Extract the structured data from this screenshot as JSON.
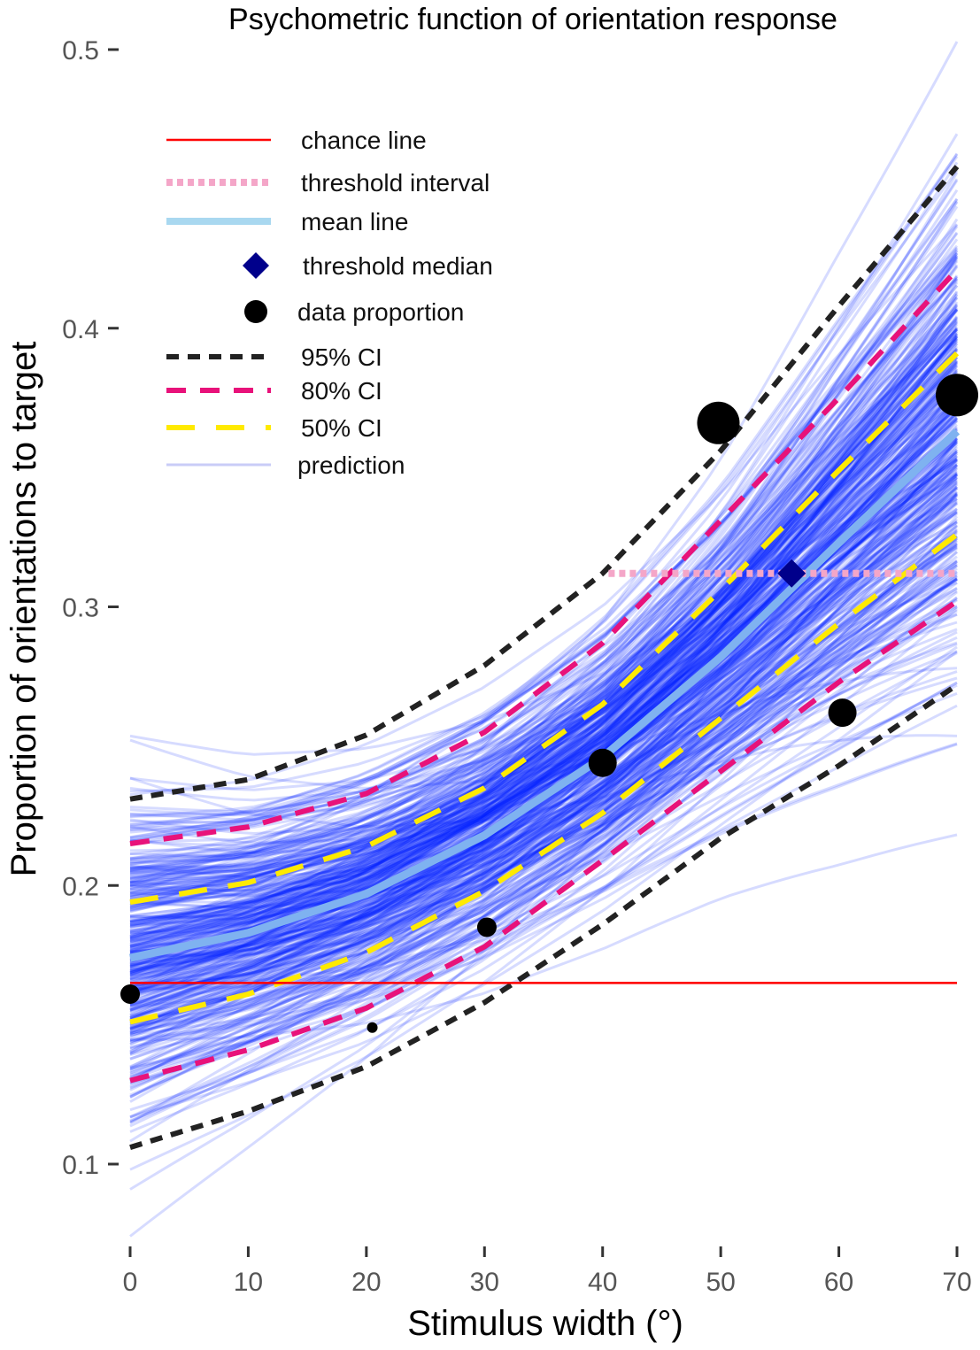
{
  "chart_data": {
    "type": "line",
    "title": "Psychometric function of orientation response",
    "xlabel": "Stimulus width (°)",
    "ylabel": "Proportion of orientations to target",
    "xlim": [
      0,
      70
    ],
    "ylim": [
      0.075,
      0.5
    ],
    "x_ticks": [
      0,
      10,
      20,
      30,
      40,
      50,
      60,
      70
    ],
    "x_tick_labels": [
      "0",
      "10",
      "20",
      "30",
      "40",
      "50",
      "60",
      "70"
    ],
    "y_ticks": [
      0.1,
      0.2,
      0.3,
      0.4,
      0.5
    ],
    "y_tick_labels": [
      "0.1",
      "0.2",
      "0.3",
      "0.4",
      "0.5"
    ],
    "grid": false,
    "legend_position": "top-left",
    "legend": [
      {
        "key": "chance",
        "label": "chance line"
      },
      {
        "key": "threshold_interval",
        "label": "threshold interval"
      },
      {
        "key": "mean",
        "label": "mean line"
      },
      {
        "key": "threshold_median",
        "label": "threshold median"
      },
      {
        "key": "data",
        "label": "data proportion"
      },
      {
        "key": "ci95",
        "label": "95% CI"
      },
      {
        "key": "ci80",
        "label": "80% CI"
      },
      {
        "key": "ci50",
        "label": "50% CI"
      },
      {
        "key": "prediction",
        "label": "prediction"
      }
    ],
    "colors": {
      "chance": "#ff0000",
      "threshold_interval": "#f4a6c8",
      "mean": "#7fb2f0",
      "threshold_median": "#00008b",
      "data": "#000000",
      "ci95": "#222222",
      "ci80": "#e8127a",
      "ci50": "#ffea00",
      "prediction": "#0022ff"
    },
    "chance_line": {
      "y": 0.165,
      "x": [
        0,
        70
      ]
    },
    "threshold_interval": {
      "y": 0.312,
      "x": [
        40.5,
        70
      ]
    },
    "threshold_median": {
      "x": 56,
      "y": 0.312
    },
    "mean_line": {
      "x": [
        0,
        10,
        20,
        30,
        40,
        50,
        60,
        70
      ],
      "y": [
        0.174,
        0.183,
        0.197,
        0.218,
        0.246,
        0.282,
        0.323,
        0.363
      ]
    },
    "ci_bands": [
      {
        "name": "95% CI",
        "x": [
          0,
          10,
          20,
          30,
          40,
          50,
          60,
          70
        ],
        "lower": [
          0.106,
          0.119,
          0.135,
          0.158,
          0.186,
          0.217,
          0.243,
          0.272
        ],
        "upper": [
          0.231,
          0.238,
          0.254,
          0.279,
          0.312,
          0.356,
          0.408,
          0.458
        ]
      },
      {
        "name": "80% CI",
        "x": [
          0,
          10,
          20,
          30,
          40,
          50,
          60,
          70
        ],
        "lower": [
          0.13,
          0.141,
          0.156,
          0.178,
          0.209,
          0.241,
          0.273,
          0.302
        ],
        "upper": [
          0.215,
          0.221,
          0.233,
          0.255,
          0.287,
          0.331,
          0.375,
          0.421
        ]
      },
      {
        "name": "50% CI",
        "x": [
          0,
          10,
          20,
          30,
          40,
          50,
          60,
          70
        ],
        "lower": [
          0.151,
          0.161,
          0.176,
          0.198,
          0.226,
          0.26,
          0.294,
          0.326
        ],
        "upper": [
          0.194,
          0.201,
          0.214,
          0.235,
          0.265,
          0.306,
          0.349,
          0.391
        ]
      }
    ],
    "data_points": [
      {
        "x": 0,
        "y": 0.161,
        "size": 2
      },
      {
        "x": 20.5,
        "y": 0.149,
        "size": 1
      },
      {
        "x": 30.2,
        "y": 0.185,
        "size": 2
      },
      {
        "x": 40,
        "y": 0.244,
        "size": 3
      },
      {
        "x": 49.8,
        "y": 0.366,
        "size": 5
      },
      {
        "x": 60.3,
        "y": 0.262,
        "size": 3
      },
      {
        "x": 70,
        "y": 0.376,
        "size": 5
      }
    ]
  }
}
